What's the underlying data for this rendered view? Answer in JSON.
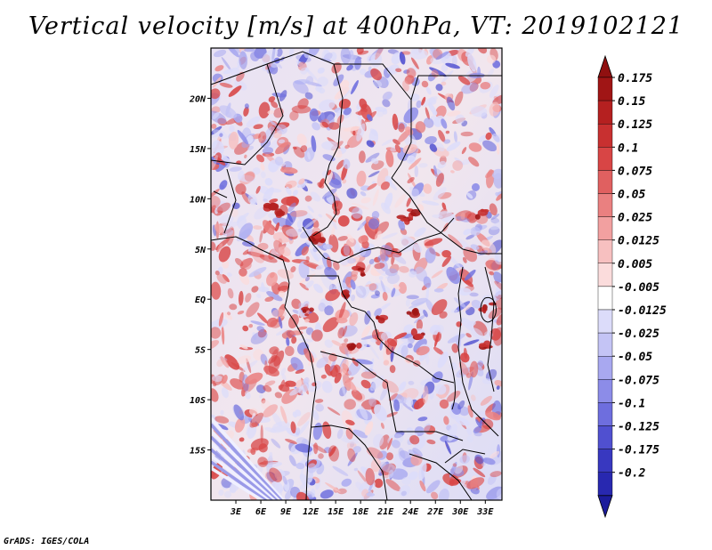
{
  "title": "Vertical velocity [m/s] at 400hPa, VT: 2019102121",
  "footer": "GrADS: IGES/COLA",
  "map": {
    "lon_range": [
      0,
      35
    ],
    "lat_range": [
      -20,
      25
    ],
    "lon_ticks": [
      {
        "value": 3,
        "label": "3E"
      },
      {
        "value": 6,
        "label": "6E"
      },
      {
        "value": 9,
        "label": "9E"
      },
      {
        "value": 12,
        "label": "12E"
      },
      {
        "value": 15,
        "label": "15E"
      },
      {
        "value": 18,
        "label": "18E"
      },
      {
        "value": 21,
        "label": "21E"
      },
      {
        "value": 24,
        "label": "24E"
      },
      {
        "value": 27,
        "label": "27E"
      },
      {
        "value": 30,
        "label": "30E"
      },
      {
        "value": 33,
        "label": "33E"
      }
    ],
    "lat_ticks": [
      {
        "value": 20,
        "label": "20N"
      },
      {
        "value": 15,
        "label": "15N"
      },
      {
        "value": 10,
        "label": "10N"
      },
      {
        "value": 5,
        "label": "5N"
      },
      {
        "value": 0,
        "label": "EQ"
      },
      {
        "value": -5,
        "label": "5S"
      },
      {
        "value": -10,
        "label": "10S"
      },
      {
        "value": -15,
        "label": "15S"
      }
    ]
  },
  "colorbar": {
    "levels": [
      {
        "label": "0.175",
        "color": "#a01515"
      },
      {
        "label": "0.15",
        "color": "#b52020"
      },
      {
        "label": "0.125",
        "color": "#c83030"
      },
      {
        "label": "0.1",
        "color": "#d84545"
      },
      {
        "label": "0.075",
        "color": "#e06060"
      },
      {
        "label": "0.05",
        "color": "#ea8080"
      },
      {
        "label": "0.025",
        "color": "#f2a0a0"
      },
      {
        "label": "0.0125",
        "color": "#f7c0c0"
      },
      {
        "label": "0.005",
        "color": "#fbdcdc"
      },
      {
        "label": "-0.005",
        "color": "#ffffff"
      },
      {
        "label": "-0.0125",
        "color": "#dcdcfa"
      },
      {
        "label": "-0.025",
        "color": "#c4c4f5"
      },
      {
        "label": "-0.05",
        "color": "#a8a8f0"
      },
      {
        "label": "-0.075",
        "color": "#8c8ce8"
      },
      {
        "label": "-0.1",
        "color": "#6e6ede"
      },
      {
        "label": "-0.125",
        "color": "#5050d0"
      },
      {
        "label": "-0.175",
        "color": "#3838c0"
      },
      {
        "label": "-0.2",
        "color": "#2828b0"
      }
    ],
    "top_color": "#901010",
    "bottom_color": "#1c1c9c"
  }
}
